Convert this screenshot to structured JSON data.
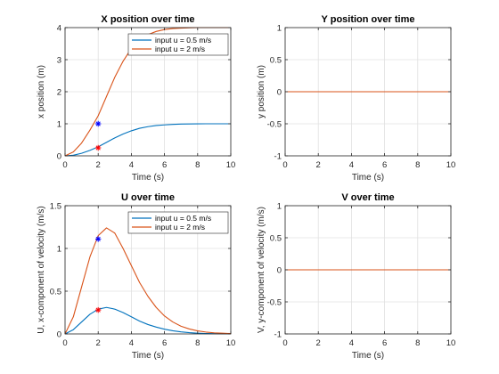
{
  "colors": {
    "series1": "#0072BD",
    "series2": "#D95319",
    "marker_blue": "#0000FF",
    "marker_red": "#FF0000",
    "grid": "#e0e0e0",
    "axis": "#262626"
  },
  "chart_data": [
    {
      "type": "line",
      "title": "X position over time",
      "xlabel": "Time (s)",
      "ylabel": "x position (m)",
      "xlim": [
        0,
        10
      ],
      "ylim": [
        0,
        4
      ],
      "xticks": [
        0,
        2,
        4,
        6,
        8,
        10
      ],
      "yticks": [
        0,
        1,
        2,
        3,
        4
      ],
      "ytick_labels": [
        "0",
        "1",
        "2",
        "3",
        "4"
      ],
      "grid": true,
      "legend": "top-right",
      "x": [
        0,
        0.5,
        1,
        1.5,
        2,
        2.5,
        3,
        3.5,
        4,
        4.5,
        5,
        5.5,
        6,
        6.5,
        7,
        7.5,
        8,
        8.5,
        9,
        9.5,
        10
      ],
      "series": [
        {
          "name": "input u = 0.5 m/s",
          "values": [
            0,
            0.02,
            0.08,
            0.17,
            0.28,
            0.42,
            0.56,
            0.68,
            0.78,
            0.86,
            0.91,
            0.945,
            0.965,
            0.98,
            0.99,
            0.995,
            0.998,
            1.0,
            1.0,
            1.0,
            1.0
          ]
        },
        {
          "name": "input u = 2 m/s",
          "values": [
            0,
            0.12,
            0.4,
            0.8,
            1.25,
            1.85,
            2.45,
            2.95,
            3.35,
            3.62,
            3.78,
            3.88,
            3.94,
            3.97,
            3.985,
            3.995,
            4.0,
            4.0,
            4.0,
            4.0,
            4.0
          ]
        }
      ],
      "markers": [
        {
          "x": 2,
          "y": 1.0,
          "color": "marker_blue"
        },
        {
          "x": 2,
          "y": 0.25,
          "color": "marker_red"
        }
      ]
    },
    {
      "type": "line",
      "title": "Y position over time",
      "xlabel": "Time (s)",
      "ylabel": "y position (m)",
      "xlim": [
        0,
        10
      ],
      "ylim": [
        -1,
        1
      ],
      "xticks": [
        0,
        2,
        4,
        6,
        8,
        10
      ],
      "yticks": [
        -1,
        -0.5,
        0,
        0.5,
        1
      ],
      "ytick_labels": [
        "-1",
        "-0.5",
        "0",
        "0.5",
        "1"
      ],
      "grid": true,
      "x": [
        0,
        10
      ],
      "series": [
        {
          "values": [
            0,
            0
          ]
        },
        {
          "values": [
            0,
            0
          ]
        }
      ],
      "markers": []
    },
    {
      "type": "line",
      "title": "U over time",
      "xlabel": "Time (s)",
      "ylabel": "U, x-component of velocity (m/s)",
      "xlim": [
        0,
        10
      ],
      "ylim": [
        0,
        1.5
      ],
      "xticks": [
        0,
        2,
        4,
        6,
        8,
        10
      ],
      "yticks": [
        0,
        0.5,
        1,
        1.5
      ],
      "ytick_labels": [
        "0",
        "0.5",
        "1",
        "1.5"
      ],
      "grid": true,
      "legend": "top-right",
      "x": [
        0,
        0.5,
        1,
        1.5,
        2,
        2.5,
        3,
        3.5,
        4,
        4.5,
        5,
        5.5,
        6,
        6.5,
        7,
        7.5,
        8,
        8.5,
        9,
        9.5,
        10
      ],
      "series": [
        {
          "name": "input u = 0.5 m/s",
          "values": [
            0,
            0.05,
            0.14,
            0.23,
            0.29,
            0.31,
            0.29,
            0.25,
            0.2,
            0.15,
            0.11,
            0.08,
            0.055,
            0.037,
            0.024,
            0.015,
            0.009,
            0.005,
            0.003,
            0.002,
            0.001
          ]
        },
        {
          "name": "input u = 2 m/s",
          "values": [
            0,
            0.2,
            0.55,
            0.9,
            1.15,
            1.24,
            1.18,
            1.0,
            0.8,
            0.6,
            0.44,
            0.31,
            0.21,
            0.14,
            0.09,
            0.058,
            0.036,
            0.022,
            0.013,
            0.008,
            0.005
          ]
        }
      ],
      "markers": [
        {
          "x": 2,
          "y": 1.11,
          "color": "marker_blue"
        },
        {
          "x": 2,
          "y": 0.28,
          "color": "marker_red"
        }
      ]
    },
    {
      "type": "line",
      "title": "V over time",
      "xlabel": "Time (s)",
      "ylabel": "V, y-component of velocity (m/s)",
      "xlim": [
        0,
        10
      ],
      "ylim": [
        -1,
        1
      ],
      "xticks": [
        0,
        2,
        4,
        6,
        8,
        10
      ],
      "yticks": [
        -1,
        -0.5,
        0,
        0.5,
        1
      ],
      "ytick_labels": [
        "-1",
        "-0.5",
        "0",
        "0.5",
        "1"
      ],
      "grid": true,
      "x": [
        0,
        10
      ],
      "series": [
        {
          "values": [
            0,
            0
          ]
        },
        {
          "values": [
            0,
            0
          ]
        }
      ],
      "markers": []
    }
  ]
}
